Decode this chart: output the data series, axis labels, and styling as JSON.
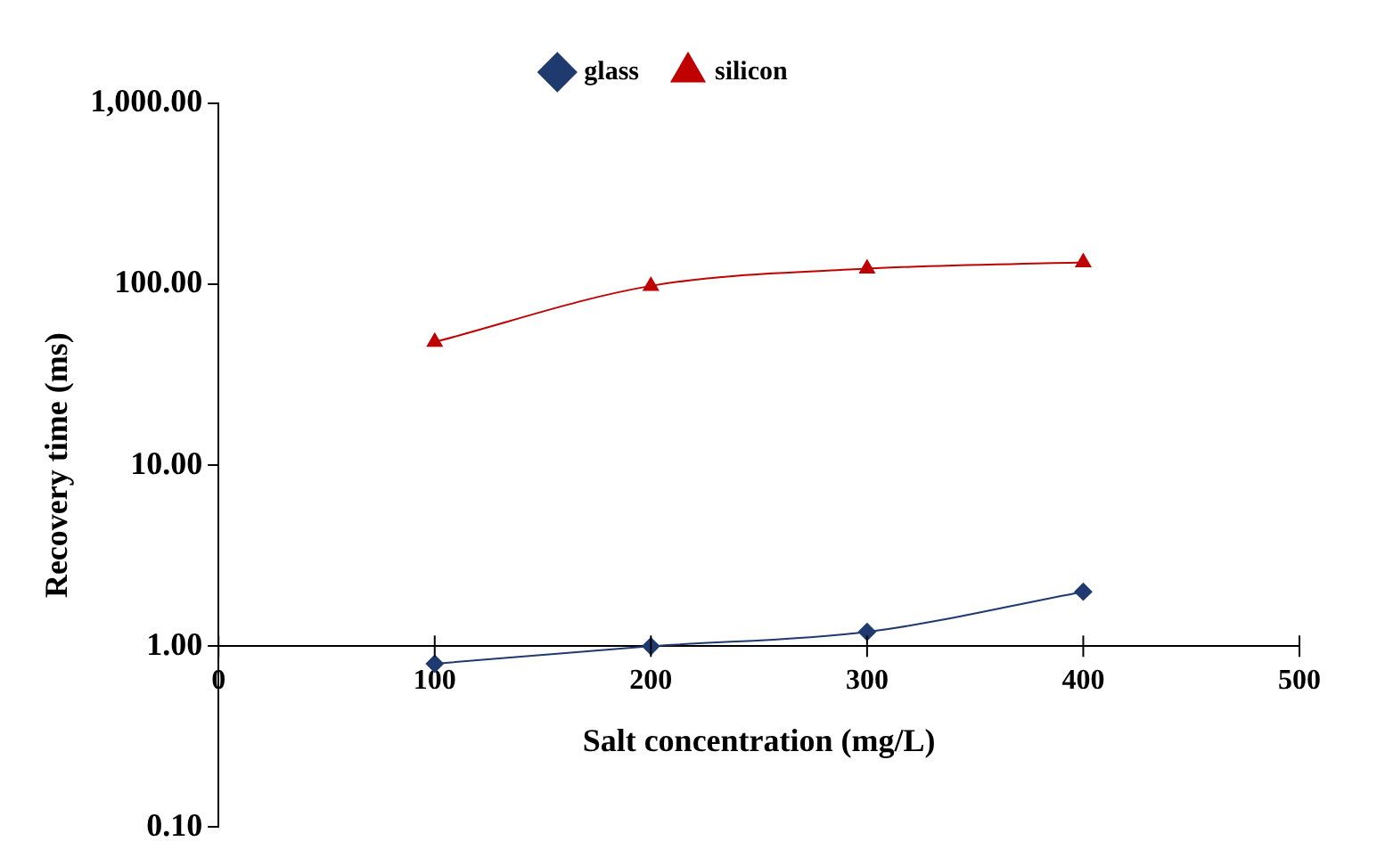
{
  "chart_data": {
    "type": "line",
    "xlabel": "Salt concentration (mg/L)",
    "ylabel": "Recovery time (ms)",
    "x": [
      100,
      200,
      300,
      400
    ],
    "series": [
      {
        "name": "glass",
        "color": "#1f3a6e",
        "marker": "diamond",
        "values": [
          0.8,
          1.0,
          1.2,
          2.0
        ]
      },
      {
        "name": "silicon",
        "color": "#c00000",
        "marker": "triangle",
        "values": [
          48,
          98,
          122,
          132
        ]
      }
    ],
    "log": "y",
    "xlim": [
      0,
      500
    ],
    "xticks": [
      0,
      100,
      200,
      300,
      400,
      500
    ],
    "ylim": [
      0.1,
      1000
    ],
    "yticks": [
      {
        "value": 0.1,
        "label": "0.10"
      },
      {
        "value": 1,
        "label": "1.00"
      },
      {
        "value": 10,
        "label": "10.00"
      },
      {
        "value": 100,
        "label": "100.00"
      },
      {
        "value": 1000,
        "label": "1,000.00"
      }
    ],
    "grid": false,
    "legend": "top",
    "line_style": "solid"
  }
}
